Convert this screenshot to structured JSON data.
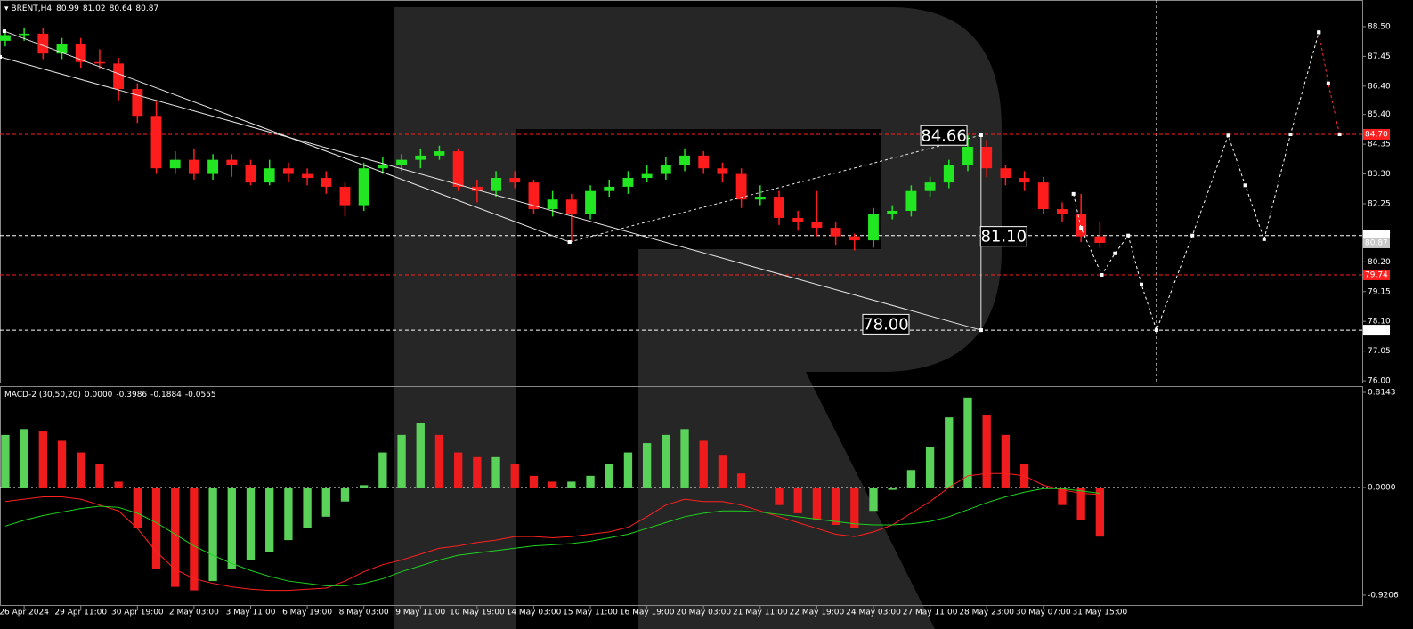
{
  "chart_data": [
    {
      "type": "candlestick",
      "title": "BRENT,H4",
      "quote": [
        80.99,
        81.02,
        80.64,
        80.87
      ],
      "up_color": "#22e622",
      "down_color": "#ff1c1c",
      "xlim": [
        -0.28,
        71.9
      ],
      "ylim": [
        75.94,
        89.44
      ],
      "yticks": [
        {
          "value": 88.5,
          "label": "88.50"
        },
        {
          "value": 87.45,
          "label": "87.45"
        },
        {
          "value": 86.4,
          "label": "86.40"
        },
        {
          "value": 85.4,
          "label": "85.40"
        },
        {
          "value": 84.35,
          "label": "84.35"
        },
        {
          "value": 83.3,
          "label": "83.30"
        },
        {
          "value": 82.25,
          "label": "82.25"
        },
        {
          "value": 81.2,
          "label": "81.20"
        },
        {
          "value": 80.2,
          "label": "80.20"
        },
        {
          "value": 79.15,
          "label": "79.15"
        },
        {
          "value": 78.1,
          "label": "78.10"
        },
        {
          "value": 77.05,
          "label": "77.05"
        },
        {
          "value": 76.0,
          "label": "76.00"
        }
      ],
      "open": [
        88.0,
        88.2,
        88.25,
        87.55,
        87.9,
        87.25,
        87.2,
        86.3,
        85.35,
        83.5,
        83.8,
        83.3,
        83.8,
        83.6,
        83.0,
        83.5,
        83.3,
        83.16,
        82.85,
        82.2,
        83.5,
        83.6,
        83.8,
        83.95,
        84.1,
        82.85,
        82.7,
        83.16,
        83.0,
        82.06,
        82.4,
        81.9,
        82.7,
        82.85,
        83.16,
        83.3,
        83.6,
        83.95,
        83.5,
        83.3,
        82.4,
        82.5,
        81.75,
        81.6,
        81.4,
        81.1,
        80.96,
        81.9,
        82.0,
        82.7,
        83.0,
        83.6,
        84.26,
        83.5,
        83.16,
        83.0,
        82.06,
        81.9,
        81.1
      ],
      "high": [
        88.4,
        88.45,
        88.45,
        88.1,
        88.1,
        87.7,
        87.4,
        86.5,
        85.9,
        84.1,
        84.2,
        84.0,
        84.0,
        83.8,
        83.8,
        83.7,
        83.5,
        83.4,
        83.0,
        83.7,
        83.9,
        84.0,
        84.2,
        84.3,
        84.2,
        83.1,
        83.4,
        83.4,
        83.1,
        82.7,
        82.6,
        82.9,
        83.1,
        83.4,
        83.6,
        83.9,
        84.2,
        84.1,
        83.7,
        83.5,
        82.9,
        82.7,
        82.0,
        82.7,
        81.6,
        81.2,
        82.1,
        82.2,
        82.9,
        83.2,
        83.8,
        84.66,
        84.5,
        83.6,
        83.4,
        83.2,
        82.3,
        82.6,
        81.6
      ],
      "low": [
        87.8,
        88.0,
        87.35,
        87.35,
        87.05,
        87.0,
        85.9,
        85.1,
        83.3,
        83.3,
        83.1,
        83.1,
        83.2,
        82.9,
        82.9,
        83.0,
        82.9,
        82.6,
        81.8,
        82.0,
        83.3,
        83.4,
        83.5,
        83.8,
        82.7,
        82.3,
        82.5,
        82.8,
        81.9,
        81.8,
        80.9,
        81.7,
        82.5,
        82.6,
        83.0,
        83.1,
        83.4,
        83.3,
        83.0,
        82.1,
        82.2,
        81.5,
        81.3,
        81.1,
        80.8,
        80.6,
        80.7,
        81.7,
        81.8,
        82.5,
        82.8,
        83.4,
        83.2,
        82.9,
        82.7,
        81.9,
        81.6,
        80.9,
        80.7
      ],
      "close": [
        88.2,
        88.25,
        87.55,
        87.9,
        87.25,
        87.2,
        86.3,
        85.35,
        83.5,
        83.8,
        83.3,
        83.8,
        83.6,
        83.0,
        83.5,
        83.3,
        83.16,
        82.85,
        82.2,
        83.5,
        83.6,
        83.8,
        83.95,
        84.1,
        82.85,
        82.7,
        83.16,
        83.0,
        82.06,
        82.4,
        81.9,
        82.7,
        82.85,
        83.16,
        83.3,
        83.6,
        83.95,
        83.5,
        83.3,
        82.4,
        82.5,
        81.75,
        81.6,
        81.4,
        81.1,
        80.96,
        81.9,
        82.0,
        82.7,
        83.0,
        83.6,
        84.26,
        83.5,
        83.16,
        83.0,
        82.06,
        81.9,
        81.1,
        80.87
      ],
      "levels": [
        {
          "value": 84.7,
          "label": "84.70",
          "color": "#ff2020",
          "dashed": true
        },
        {
          "value": 81.13,
          "color": "#ffffff",
          "dashed": true
        },
        {
          "value": 80.87,
          "color": "#c8c8c8",
          "dashed": false
        },
        {
          "value": 79.74,
          "color": "#ff2020",
          "dashed": true
        },
        {
          "value": 77.79,
          "color": "#ffffff",
          "dashed": true
        }
      ],
      "trendlines": [
        {
          "x": [
            -0.05,
            29.9
          ],
          "values": [
            88.34,
            80.9
          ],
          "style": "solid"
        },
        {
          "x": [
            -0.28,
            51.7
          ],
          "values": [
            87.43,
            77.79
          ],
          "style": "solid"
        },
        {
          "x": [
            29.9,
            51.7
          ],
          "values": [
            80.9,
            84.67
          ],
          "style": "dashed"
        },
        {
          "x": [
            51.7,
            51.7
          ],
          "values": [
            84.67,
            77.79
          ],
          "style": "solid"
        }
      ],
      "forecast": [
        {
          "color": "#ffffff",
          "x": [
            56.6,
            57.0,
            58.1,
            58.8,
            59.5,
            60.2,
            61.0,
            62.9,
            64.8,
            65.7,
            66.7,
            68.1,
            69.6
          ],
          "values": [
            82.6,
            81.4,
            79.74,
            80.5,
            81.13,
            79.4,
            77.79,
            81.13,
            84.66,
            82.9,
            81.0,
            84.7,
            88.3
          ]
        },
        {
          "color": "#ff3030",
          "x": [
            69.6,
            70.1,
            70.7
          ],
          "values": [
            88.3,
            86.5,
            84.7
          ]
        }
      ],
      "vlines": [
        61
      ],
      "annotations": [
        {
          "x": 49.73,
          "value": 84.66,
          "label": "84.66"
        },
        {
          "x": 52.9,
          "value": 81.1,
          "label": "81.10"
        },
        {
          "x": 46.66,
          "value": 78.0,
          "label": "78.00"
        }
      ]
    },
    {
      "type": "macd",
      "title": "MACD-2 (30,50,20)",
      "readout": [
        {
          "value": 0,
          "label": "0.0000"
        },
        -0.3986,
        -0.1884,
        -0.0555
      ],
      "xlim": [
        -0.28,
        71.9
      ],
      "ylim": [
        -1.005,
        0.86
      ],
      "yticks": [
        0.8143,
        {
          "value": 0,
          "label": "0.0000"
        },
        -0.9206
      ],
      "xticks": [
        {
          "value": 1,
          "label": "26 Apr 2024"
        },
        {
          "value": 4,
          "label": "29 Apr 11:00"
        },
        {
          "value": 7,
          "label": "30 Apr 19:00"
        },
        {
          "value": 10,
          "label": "2 May 03:00"
        },
        {
          "value": 13,
          "label": "3 May 11:00"
        },
        {
          "value": 16,
          "label": "6 May 19:00"
        },
        {
          "value": 19,
          "label": "8 May 03:00"
        },
        {
          "value": 22,
          "label": "9 May 11:00"
        },
        {
          "value": 25,
          "label": "10 May 19:00"
        },
        {
          "value": 28,
          "label": "14 May 03:00"
        },
        {
          "value": 31,
          "label": "15 May 11:00"
        },
        {
          "value": 34,
          "label": "16 May 19:00"
        },
        {
          "value": 37,
          "label": "20 May 03:00"
        },
        {
          "value": 40,
          "label": "21 May 11:00"
        },
        {
          "value": 43,
          "label": "22 May 19:00"
        },
        {
          "value": 46,
          "label": "24 May 03:00"
        },
        {
          "value": 49,
          "label": "27 May 11:00"
        },
        {
          "value": 52,
          "label": "28 May 23:00"
        },
        {
          "value": 55,
          "label": "30 May 07:00"
        },
        {
          "value": 58,
          "label": "31 May 15:00"
        }
      ],
      "up_color": "#5ad25a",
      "down_color": "#ee1c1c",
      "histogram": [
        0.45,
        0.5,
        0.48,
        0.4,
        0.3,
        0.2,
        0.05,
        -0.35,
        -0.7,
        -0.85,
        -0.88,
        -0.8,
        -0.7,
        -0.62,
        -0.55,
        -0.45,
        -0.35,
        -0.25,
        -0.12,
        0.02,
        0.3,
        0.45,
        0.55,
        0.45,
        0.3,
        0.26,
        0.26,
        0.2,
        0.1,
        0.05,
        0.05,
        0.1,
        0.2,
        0.3,
        0.38,
        0.45,
        0.5,
        0.4,
        0.28,
        0.12,
        0.0,
        -0.15,
        -0.22,
        -0.28,
        -0.32,
        -0.35,
        -0.2,
        -0.02,
        0.15,
        0.35,
        0.6,
        0.77,
        0.62,
        0.45,
        0.2,
        0.0,
        -0.15,
        -0.28,
        -0.42
      ],
      "lines": [
        {
          "color": "#ff2020",
          "values": [
            -0.12,
            -0.1,
            -0.08,
            -0.08,
            -0.1,
            -0.15,
            -0.2,
            -0.35,
            -0.55,
            -0.7,
            -0.78,
            -0.82,
            -0.85,
            -0.87,
            -0.88,
            -0.88,
            -0.87,
            -0.86,
            -0.8,
            -0.72,
            -0.66,
            -0.62,
            -0.57,
            -0.52,
            -0.5,
            -0.47,
            -0.45,
            -0.42,
            -0.42,
            -0.43,
            -0.42,
            -0.4,
            -0.38,
            -0.34,
            -0.25,
            -0.15,
            -0.1,
            -0.12,
            -0.12,
            -0.15,
            -0.2,
            -0.25,
            -0.3,
            -0.35,
            -0.4,
            -0.42,
            -0.38,
            -0.32,
            -0.22,
            -0.12,
            0.0,
            0.1,
            0.12,
            0.12,
            0.1,
            0.02,
            -0.02,
            -0.05,
            -0.06
          ]
        },
        {
          "color": "#1ed21e",
          "values": [
            -0.33,
            -0.28,
            -0.24,
            -0.21,
            -0.18,
            -0.16,
            -0.17,
            -0.22,
            -0.3,
            -0.4,
            -0.5,
            -0.58,
            -0.65,
            -0.71,
            -0.76,
            -0.8,
            -0.82,
            -0.84,
            -0.84,
            -0.82,
            -0.78,
            -0.72,
            -0.67,
            -0.62,
            -0.58,
            -0.56,
            -0.54,
            -0.52,
            -0.5,
            -0.49,
            -0.48,
            -0.46,
            -0.43,
            -0.4,
            -0.35,
            -0.3,
            -0.25,
            -0.22,
            -0.2,
            -0.2,
            -0.21,
            -0.23,
            -0.25,
            -0.27,
            -0.29,
            -0.31,
            -0.32,
            -0.32,
            -0.31,
            -0.29,
            -0.25,
            -0.19,
            -0.13,
            -0.08,
            -0.04,
            -0.01,
            -0.01,
            -0.03,
            -0.05
          ]
        }
      ]
    }
  ]
}
